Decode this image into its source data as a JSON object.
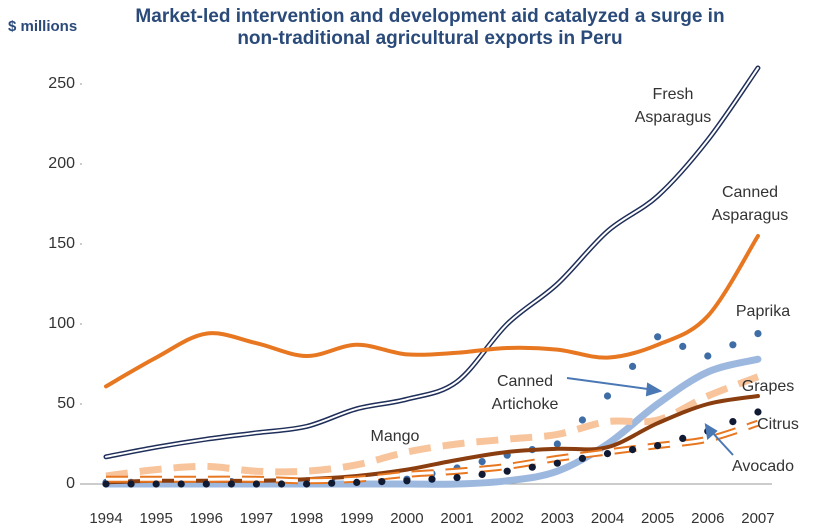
{
  "chart_data": {
    "type": "line",
    "title": "Market-led intervention and development aid catalyzed a surge in non-traditional agricultural exports in Peru",
    "ylabel": "$ millions",
    "categories": [
      "1994",
      "1995",
      "1996",
      "1997",
      "1998",
      "1999",
      "2000",
      "2001",
      "2002",
      "2003",
      "2004",
      "2005",
      "2006",
      "2007"
    ],
    "ylim": [
      0,
      260
    ],
    "yticks": [
      0,
      50,
      100,
      150,
      200,
      250
    ],
    "series": [
      {
        "name": "Fresh Asparagus",
        "color": "#1f2f5a",
        "style": "double",
        "values": [
          17,
          23,
          28,
          32,
          36,
          47,
          53,
          64,
          100,
          125,
          158,
          180,
          215,
          260
        ]
      },
      {
        "name": "Canned Asparagus",
        "color": "#e87722",
        "style": "solid",
        "values": [
          61,
          79,
          94,
          88,
          80,
          87,
          81,
          82,
          85,
          84,
          79,
          87,
          105,
          155
        ]
      },
      {
        "name": "Paprika",
        "color": "#3f6ea6",
        "style": "dots",
        "values": [
          1,
          1,
          1,
          2,
          2,
          2,
          3,
          10,
          18,
          25,
          55,
          92,
          80,
          94
        ]
      },
      {
        "name": "Canned Artichoke",
        "color": "#9db8df",
        "style": "thick",
        "values": [
          0,
          0,
          0,
          0,
          0,
          0,
          0,
          0,
          2,
          8,
          25,
          50,
          70,
          78
        ]
      },
      {
        "name": "Mango",
        "color": "#f8c49c",
        "style": "dashed",
        "values": [
          5,
          9,
          11,
          8,
          8,
          12,
          20,
          25,
          28,
          31,
          39,
          40,
          55,
          67
        ]
      },
      {
        "name": "Grapes",
        "color": "#8a3d0f",
        "style": "solid",
        "values": [
          1,
          2,
          2,
          2,
          3,
          5,
          9,
          15,
          20,
          22,
          23,
          38,
          50,
          55
        ]
      },
      {
        "name": "Citrus",
        "color": "#e87722",
        "style": "hollow-dash",
        "values": [
          3,
          3,
          3,
          3,
          2,
          3,
          6,
          8,
          11,
          16,
          20,
          24,
          28,
          38
        ]
      },
      {
        "name": "Avocado",
        "color": "#111a33",
        "style": "dots",
        "values": [
          0,
          0,
          0,
          0,
          0,
          1,
          2,
          4,
          8,
          13,
          19,
          24,
          33,
          45
        ]
      }
    ]
  }
}
